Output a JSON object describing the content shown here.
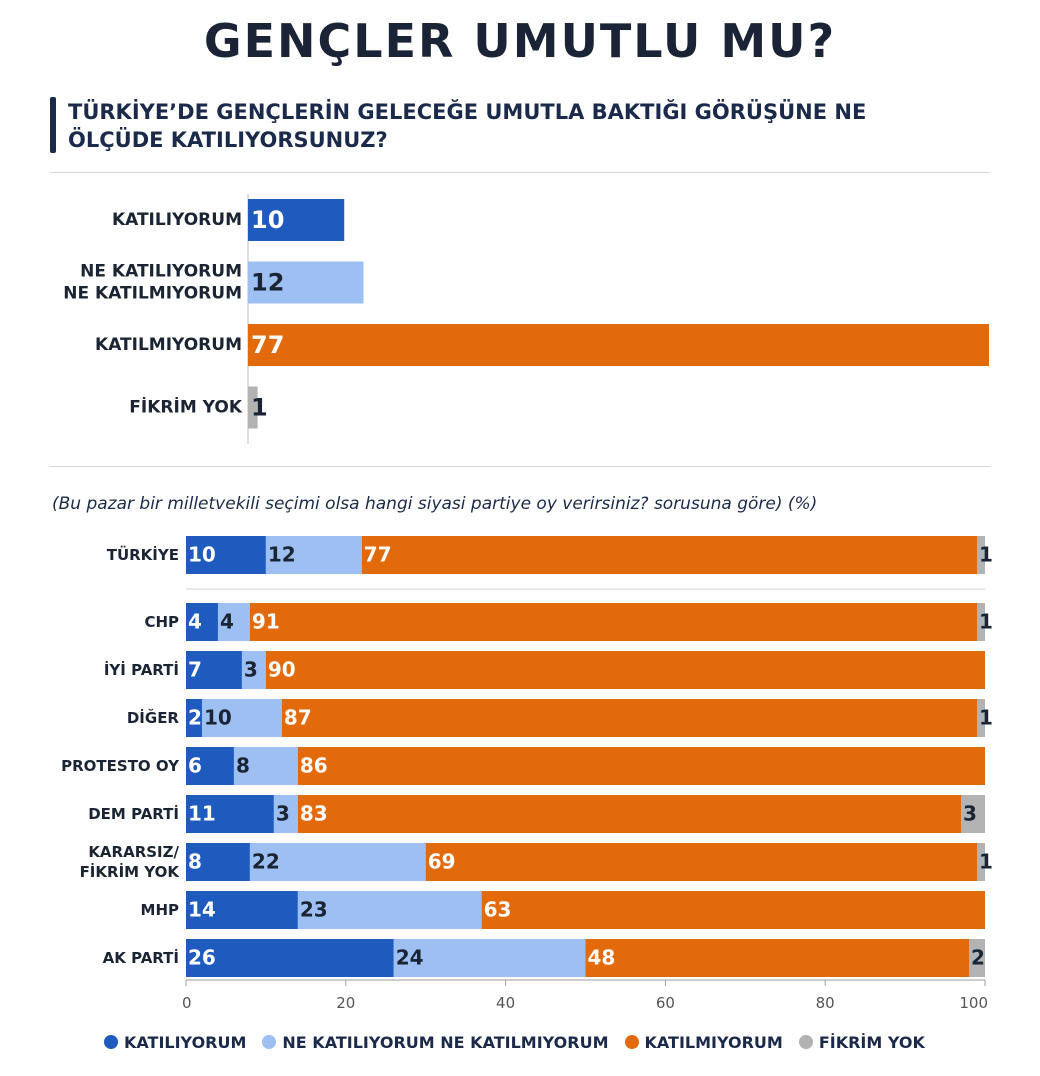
{
  "title": "GENÇLER UMUTLU MU?",
  "question": "TÜRKİYE’DE GENÇLERİN GELECEĞE UMUTLA BAKTIĞI GÖRÜŞÜNE NE ÖLÇÜDE KATILIYORSUNUZ?",
  "note": "(Bu pazar bir milletvekili seçimi olsa hangi siyasi partiye oy verirsiniz? sorusuna göre) (%)",
  "colors": {
    "katiliyorum": "#1f5bbf",
    "ne_ne": "#9dbff2",
    "katilmiyorum": "#e36a0a",
    "fikrim_yok": "#b3b3b3"
  },
  "legend": [
    {
      "label": "KATILIYORUM",
      "color": "#1f5bbf"
    },
    {
      "label": "NE KATILIYORUM NE KATILMIYORUM",
      "color": "#9dbff2"
    },
    {
      "label": "KATILMIYORUM",
      "color": "#e36a0a"
    },
    {
      "label": "FİKRİM YOK",
      "color": "#b3b3b3"
    }
  ],
  "chart_data": [
    {
      "type": "bar",
      "orientation": "horizontal",
      "title": "TÜRKİYE’DE GENÇLERİN GELECEĞE UMUTLA BAKTIĞI GÖRÜŞÜNE NE ÖLÇÜDE KATILIYORSUNUZ?",
      "categories": [
        [
          "KATILIYORUM"
        ],
        [
          "NE KATILIYORUM",
          "NE KATILMIYORUM"
        ],
        [
          "KATILMIYORUM"
        ],
        [
          "FİKRİM YOK"
        ]
      ],
      "values": [
        10,
        12,
        77,
        1
      ],
      "colors": [
        "#1f5bbf",
        "#9dbff2",
        "#e36a0a",
        "#b3b3b3"
      ],
      "xlim": [
        0,
        77
      ]
    },
    {
      "type": "bar",
      "stacked": true,
      "orientation": "horizontal",
      "title": "(Bu pazar bir milletvekili seçimi olsa hangi siyasi partiye oy verirsiniz? sorusuna göre) (%)",
      "categories": [
        [
          "TÜRKİYE"
        ],
        [
          "CHP"
        ],
        [
          "İYİ PARTİ"
        ],
        [
          "DİĞER"
        ],
        [
          "PROTESTO OY"
        ],
        [
          "DEM PARTİ"
        ],
        [
          "KARARSIZ/",
          "FİKRİM YOK"
        ],
        [
          "MHP"
        ],
        [
          "AK PARTİ"
        ]
      ],
      "series": [
        {
          "name": "KATILIYORUM",
          "values": [
            10,
            4,
            7,
            2,
            6,
            11,
            8,
            14,
            26
          ]
        },
        {
          "name": "NE KATILIYORUM NE KATILMIYORUM",
          "values": [
            12,
            4,
            3,
            10,
            8,
            3,
            22,
            23,
            24
          ]
        },
        {
          "name": "KATILMIYORUM",
          "values": [
            77,
            91,
            90,
            87,
            86,
            83,
            69,
            63,
            48
          ]
        },
        {
          "name": "FİKRİM YOK",
          "values": [
            1,
            1,
            0,
            1,
            0,
            3,
            1,
            0,
            2
          ]
        }
      ],
      "xlim": [
        0,
        100
      ],
      "xticks": [
        0,
        20,
        40,
        60,
        80,
        100
      ],
      "xlabel": "",
      "ylabel": ""
    }
  ]
}
